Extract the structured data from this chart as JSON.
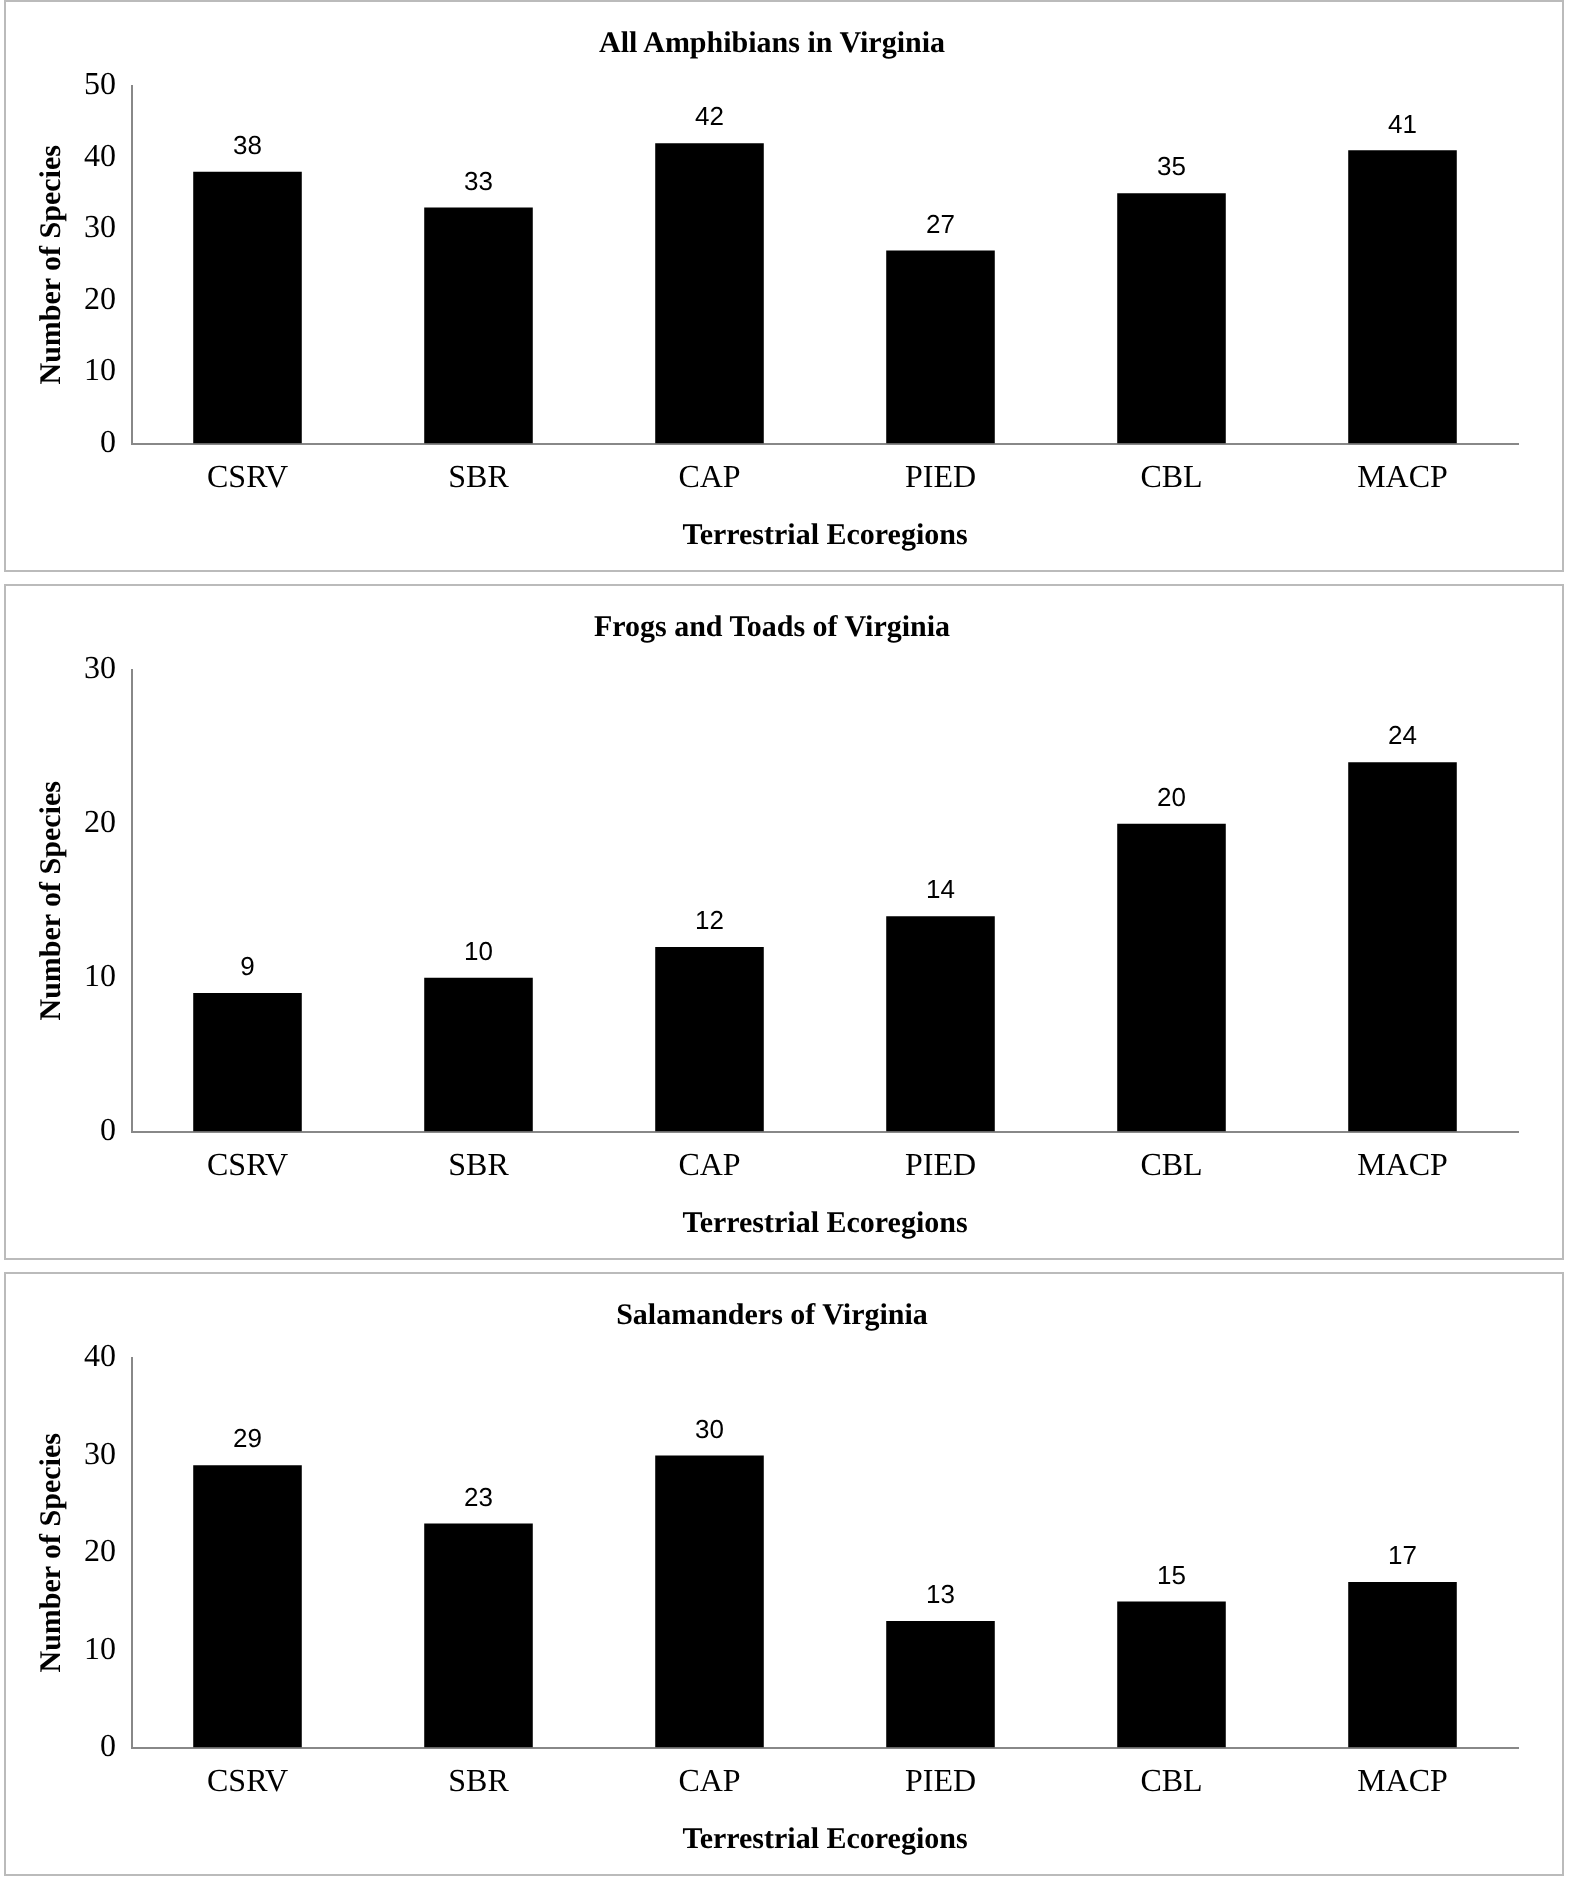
{
  "chart_data": [
    {
      "type": "bar",
      "title": "All Amphibians in Virginia",
      "xlabel": "Terrestrial Ecoregions",
      "ylabel": "Number of Species",
      "categories": [
        "CSRV",
        "SBR",
        "CAP",
        "PIED",
        "CBL",
        "MACP"
      ],
      "values": [
        38,
        33,
        42,
        27,
        35,
        41
      ],
      "color": "#000000",
      "ylim": [
        0,
        50
      ],
      "yticks": [
        0,
        10,
        20,
        30,
        40,
        50
      ],
      "grid": false,
      "legend": false,
      "data_labels": true
    },
    {
      "type": "bar",
      "title": "Frogs and Toads of Virginia",
      "xlabel": "Terrestrial Ecoregions",
      "ylabel": "Number of Species",
      "categories": [
        "CSRV",
        "SBR",
        "CAP",
        "PIED",
        "CBL",
        "MACP"
      ],
      "values": [
        9,
        10,
        12,
        14,
        20,
        24
      ],
      "color": "#000000",
      "ylim": [
        0,
        30
      ],
      "yticks": [
        0,
        10,
        20,
        30
      ],
      "grid": false,
      "legend": false,
      "data_labels": true
    },
    {
      "type": "bar",
      "title": "Salamanders of Virginia",
      "xlabel": "Terrestrial Ecoregions",
      "ylabel": "Number of Species",
      "categories": [
        "CSRV",
        "SBR",
        "CAP",
        "PIED",
        "CBL",
        "MACP"
      ],
      "values": [
        29,
        23,
        30,
        13,
        15,
        17
      ],
      "color": "#000000",
      "ylim": [
        0,
        40
      ],
      "yticks": [
        0,
        10,
        20,
        30,
        40
      ],
      "grid": false,
      "legend": false,
      "data_labels": true
    }
  ]
}
